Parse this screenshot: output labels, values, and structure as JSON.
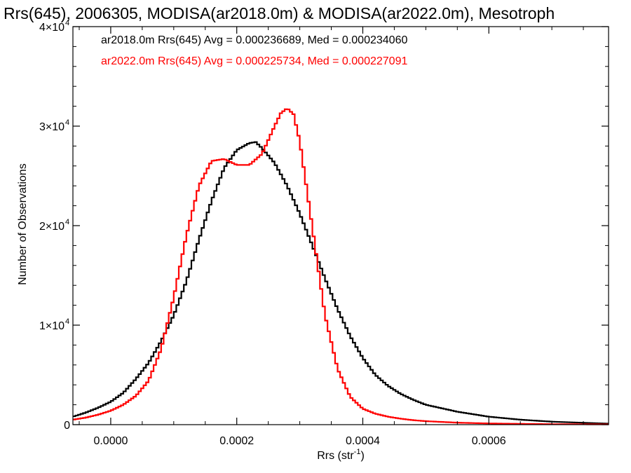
{
  "chart_data": {
    "type": "line",
    "title": "Rrs(645), 2006305, MODISA(ar2018.0m) & MODISA(ar2022.0m), Mesotroph",
    "xlabel": "Rrs (str",
    "xlabel_sup": "-1",
    "xlabel_close": ")",
    "ylabel": "Number of Observations",
    "xlim": [
      -6e-05,
      0.00079
    ],
    "ylim": [
      0,
      40000
    ],
    "xticks": [
      0.0,
      0.0002,
      0.0004,
      0.0006
    ],
    "xtick_labels": [
      "0.0000",
      "0.0002",
      "0.0004",
      "0.0006"
    ],
    "yticks": [
      {
        "value": 0,
        "mant": "0",
        "exp": ""
      },
      {
        "value": 10000,
        "mant": "1×10",
        "exp": "4"
      },
      {
        "value": 20000,
        "mant": "2×10",
        "exp": "4"
      },
      {
        "value": 30000,
        "mant": "3×10",
        "exp": "4"
      },
      {
        "value": 40000,
        "mant": "4×10",
        "exp": "4"
      }
    ],
    "grid": false,
    "legend_position": "top-left",
    "series": [
      {
        "name": "ar2018.0m Rrs(645) Avg = 0.000236689, Med = 0.000234060",
        "color": "#000000",
        "x": [
          -6e-05,
          -4e-05,
          -2e-05,
          0.0,
          2e-05,
          4e-05,
          6e-05,
          8e-05,
          0.0001,
          0.00012,
          0.00014,
          0.00016,
          0.00018,
          0.0002,
          0.00022,
          0.00023,
          0.00024,
          0.00026,
          0.00028,
          0.0003,
          0.00032,
          0.00034,
          0.00036,
          0.00038,
          0.0004,
          0.00042,
          0.00044,
          0.00046,
          0.00048,
          0.0005,
          0.00055,
          0.0006,
          0.00065,
          0.0007,
          0.00079
        ],
        "y": [
          800,
          1200,
          1700,
          2300,
          3200,
          4600,
          6200,
          8400,
          11000,
          14400,
          18600,
          22500,
          25800,
          27600,
          28300,
          28400,
          27800,
          26300,
          24000,
          21200,
          18000,
          14700,
          11600,
          8900,
          6700,
          5000,
          3900,
          3100,
          2500,
          2000,
          1300,
          800,
          500,
          300,
          100
        ]
      },
      {
        "name": "ar2022.0m Rrs(645) Avg = 0.000225734, Med = 0.000227091",
        "color": "#ff0000",
        "x": [
          -6e-05,
          -4e-05,
          -2e-05,
          0.0,
          2e-05,
          4e-05,
          6e-05,
          8e-05,
          0.0001,
          0.00012,
          0.00014,
          0.00016,
          0.00018,
          0.0002,
          0.00022,
          0.00024,
          0.00026,
          0.00027,
          0.00028,
          0.00029,
          0.0003,
          0.00032,
          0.00034,
          0.00036,
          0.00038,
          0.0004,
          0.00042,
          0.00044,
          0.00046,
          0.00048,
          0.0005,
          0.00055,
          0.0006,
          0.00065,
          0.0007,
          0.00079
        ],
        "y": [
          500,
          700,
          1000,
          1400,
          2000,
          2900,
          4400,
          7600,
          12800,
          19000,
          24000,
          26500,
          26700,
          26100,
          26100,
          27200,
          30000,
          31300,
          31800,
          31200,
          28500,
          19800,
          11000,
          5600,
          2800,
          1600,
          1100,
          800,
          600,
          450,
          350,
          200,
          120,
          80,
          50,
          30
        ]
      }
    ]
  }
}
